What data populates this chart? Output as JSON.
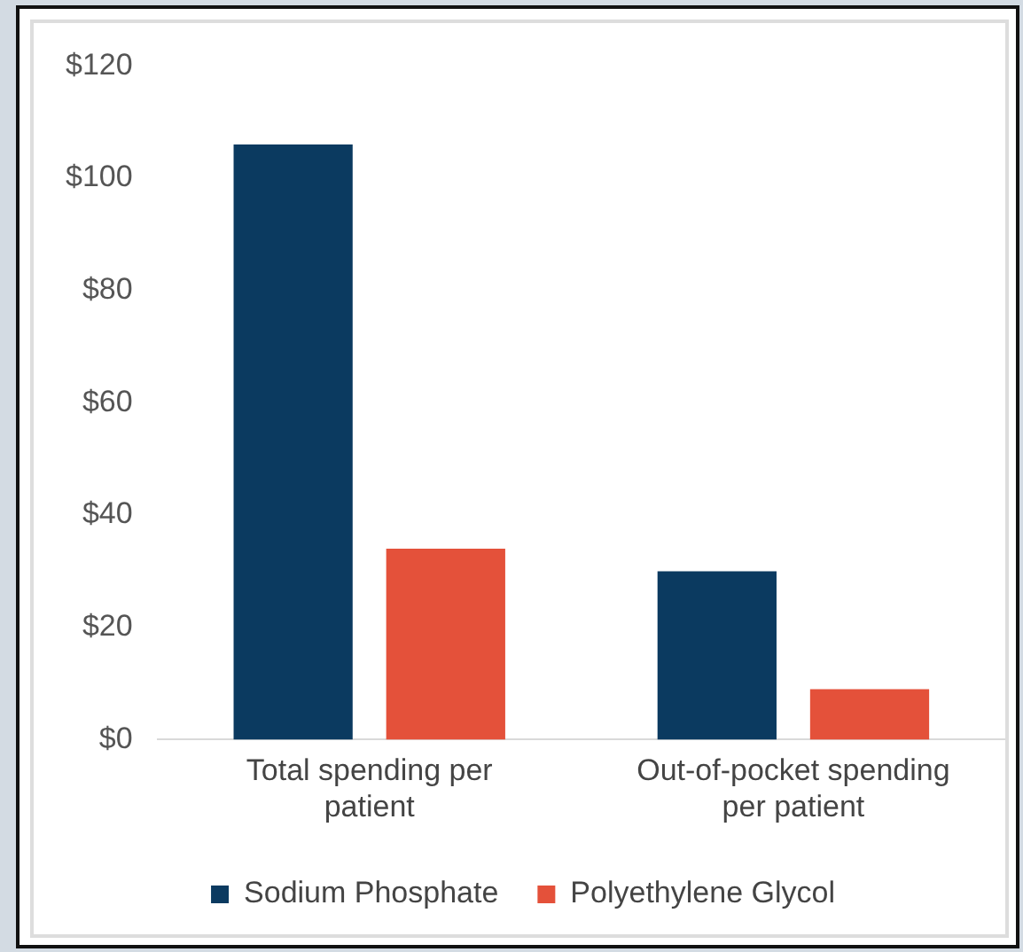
{
  "chart_data": {
    "type": "bar",
    "categories": [
      "Total spending per patient",
      "Out-of-pocket spending per patient"
    ],
    "series": [
      {
        "name": "Sodium Phosphate",
        "color": "#0b3a60",
        "values": [
          106,
          30
        ]
      },
      {
        "name": "Polyethylene Glycol",
        "color": "#e4513a",
        "values": [
          34,
          9
        ]
      }
    ],
    "ylim": [
      0,
      120
    ],
    "yticks": [
      {
        "value": 0,
        "label": "$0"
      },
      {
        "value": 20,
        "label": "$20"
      },
      {
        "value": 40,
        "label": "$40"
      },
      {
        "value": 60,
        "label": "$60"
      },
      {
        "value": 80,
        "label": "$80"
      },
      {
        "value": 100,
        "label": "$100"
      },
      {
        "value": 120,
        "label": "$120"
      }
    ],
    "grid": false,
    "legend": "bottom"
  }
}
